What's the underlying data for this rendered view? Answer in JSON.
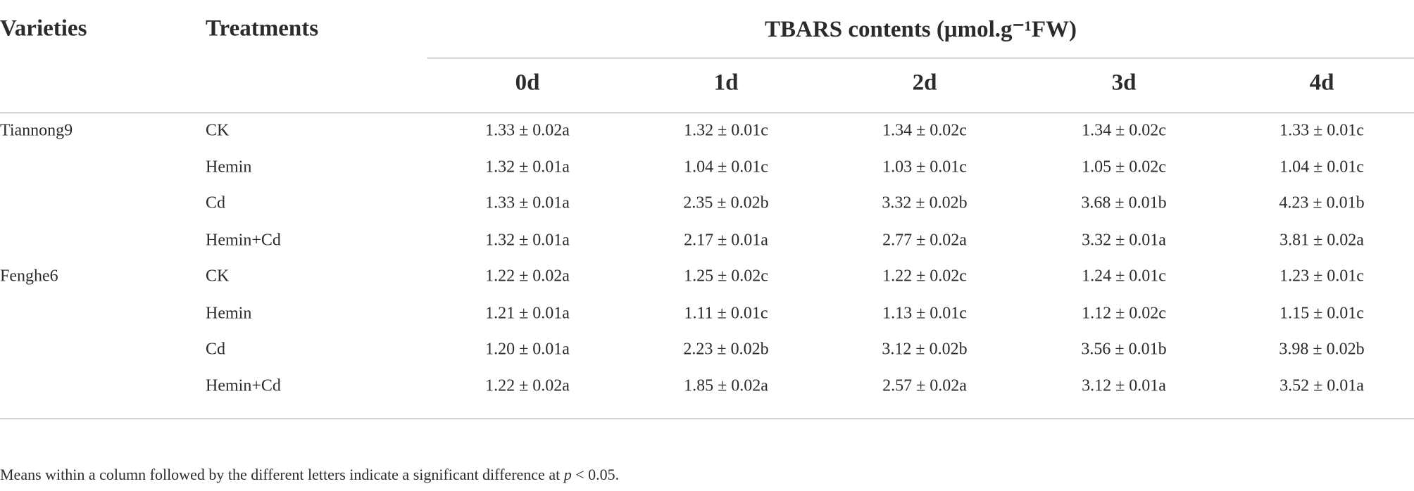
{
  "table": {
    "header": {
      "varieties": "Varieties",
      "treatments": "Treatments",
      "group": "TBARS contents (μmol.g⁻¹FW)",
      "days": [
        "0d",
        "1d",
        "2d",
        "3d",
        "4d"
      ]
    },
    "rows": [
      {
        "variety": "Tiannong9",
        "treatment": "CK",
        "values": [
          "1.33 ± 0.02a",
          "1.32 ± 0.01c",
          "1.34 ± 0.02c",
          "1.34 ± 0.02c",
          "1.33 ± 0.01c"
        ]
      },
      {
        "variety": null,
        "treatment": "Hemin",
        "values": [
          "1.32 ± 0.01a",
          "1.04 ± 0.01c",
          "1.03 ± 0.01c",
          "1.05 ± 0.02c",
          "1.04 ± 0.01c"
        ]
      },
      {
        "variety": null,
        "treatment": "Cd",
        "values": [
          "1.33 ± 0.01a",
          "2.35 ± 0.02b",
          "3.32 ± 0.02b",
          "3.68 ± 0.01b",
          "4.23 ± 0.01b"
        ]
      },
      {
        "variety": null,
        "treatment": "Hemin+Cd",
        "values": [
          "1.32 ± 0.01a",
          "2.17 ± 0.01a",
          "2.77 ± 0.02a",
          "3.32 ± 0.01a",
          "3.81 ± 0.02a"
        ]
      },
      {
        "variety": "Fenghe6",
        "treatment": "CK",
        "values": [
          "1.22 ± 0.02a",
          "1.25 ± 0.02c",
          "1.22 ± 0.02c",
          "1.24 ± 0.01c",
          "1.23 ± 0.01c"
        ]
      },
      {
        "variety": null,
        "treatment": "Hemin",
        "values": [
          "1.21 ± 0.01a",
          "1.11 ± 0.01c",
          "1.13 ± 0.01c",
          "1.12 ± 0.02c",
          "1.15 ± 0.01c"
        ]
      },
      {
        "variety": null,
        "treatment": "Cd",
        "values": [
          "1.20 ± 0.01a",
          "2.23 ± 0.02b",
          "3.12 ± 0.02b",
          "3.56 ± 0.01b",
          "3.98 ± 0.02b"
        ]
      },
      {
        "variety": null,
        "treatment": "Hemin+Cd",
        "values": [
          "1.22 ± 0.02a",
          "1.85 ± 0.02a",
          "2.57 ± 0.02a",
          "3.12 ± 0.01a",
          "3.52 ± 0.01a"
        ]
      }
    ]
  },
  "footnote": [
    "Means within a column followed by the different letters indicate a significant difference at ",
    "p",
    " < 0.05."
  ]
}
